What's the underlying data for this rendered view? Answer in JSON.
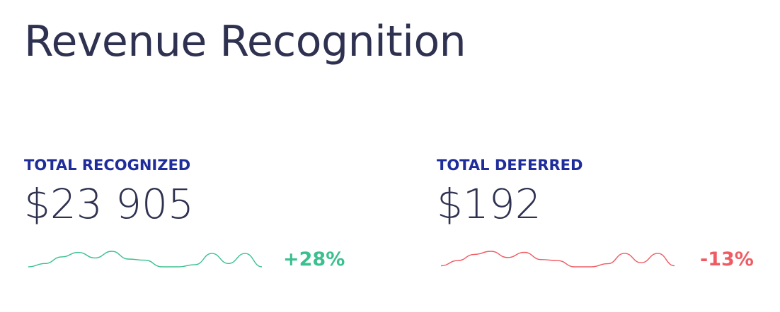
{
  "page": {
    "title": "Revenue Recognition"
  },
  "metrics": {
    "recognized": {
      "label": "TOTAL RECOGNIZED",
      "value": "$23 905",
      "change": "+28%",
      "color": "#3ac08e",
      "trend": [
        3,
        3.6,
        4.8,
        5.6,
        4.6,
        5.8,
        4.4,
        4.2,
        3.0,
        3.0,
        3.4,
        5.4,
        3.6,
        5.4,
        3.0
      ]
    },
    "deferred": {
      "label": "TOTAL DEFERRED",
      "value": "$192",
      "change": "-13%",
      "color": "#ef5b62",
      "trend": [
        3,
        4.0,
        5.2,
        5.8,
        4.6,
        5.6,
        4.2,
        4.0,
        2.8,
        2.8,
        3.4,
        5.4,
        3.6,
        5.4,
        3.0
      ]
    }
  }
}
